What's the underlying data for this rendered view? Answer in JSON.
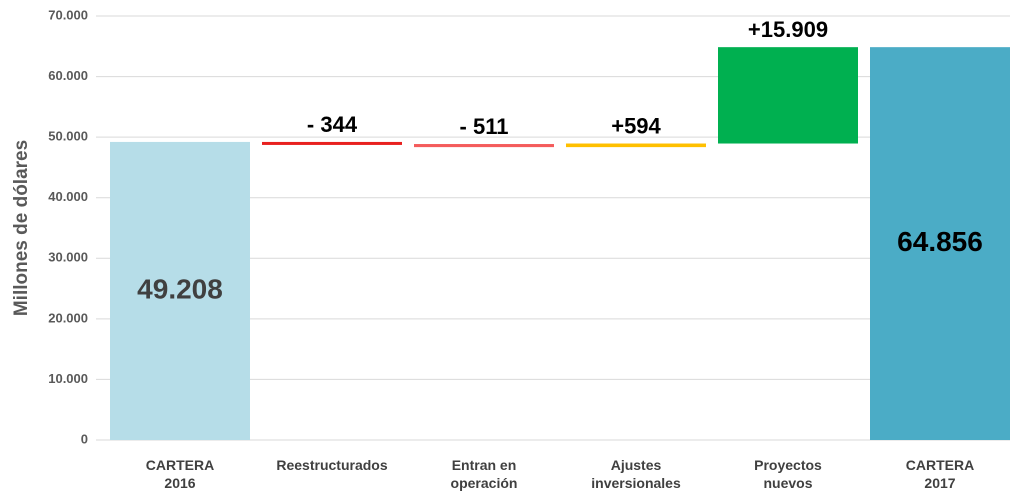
{
  "chart_data": {
    "type": "waterfall",
    "y_label": "Millones de dólares",
    "categories": [
      "CARTERA 2016",
      "Reestructurados",
      "Entran en operación",
      "Ajustes inversionales",
      "Proyectos nuevos",
      "CARTERA 2017"
    ],
    "values": [
      49208,
      -344,
      -511,
      594,
      15909,
      64856
    ],
    "value_labels": [
      "49.208",
      "- 344",
      "- 511",
      "+594",
      "+15.909",
      "64.856"
    ],
    "colors": [
      "#b6dde8",
      "#e8201f",
      "#f45c5c",
      "#ffc000",
      "#00b050",
      "#4bacc6"
    ],
    "ylim": [
      0,
      70000
    ],
    "yticks": [
      0,
      {
        "value": 10000,
        "label": "10.000"
      },
      {
        "value": 20000,
        "label": "20.000"
      },
      {
        "value": 30000,
        "label": "30.000"
      },
      {
        "value": 40000,
        "label": "40.000"
      },
      {
        "value": 50000,
        "label": "50.000"
      },
      {
        "value": 60000,
        "label": "60.000"
      },
      {
        "value": 70000,
        "label": "70.000"
      }
    ],
    "grid": true
  }
}
